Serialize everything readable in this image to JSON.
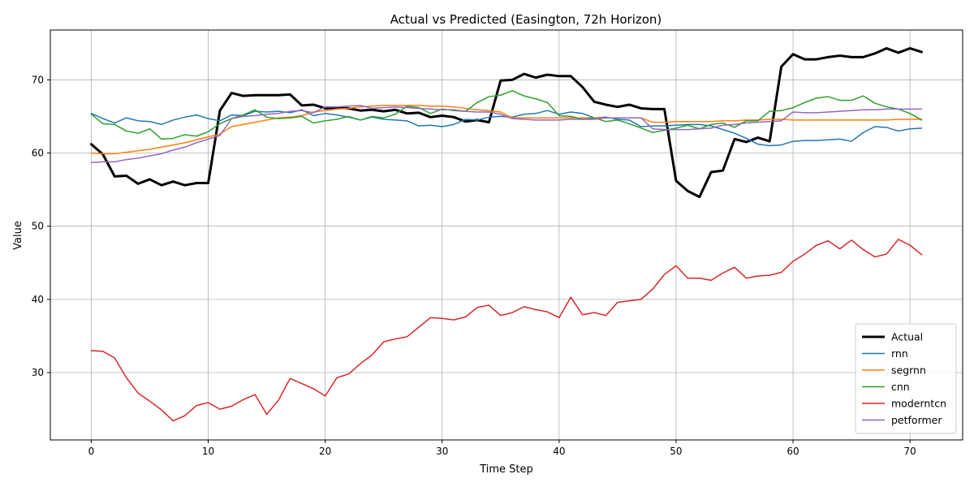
{
  "chart_data": {
    "type": "line",
    "title": "Actual vs Predicted (Easington, 72h Horizon)",
    "xlabel": "Time Step",
    "ylabel": "Value",
    "xlim": [
      -3.5,
      74.5
    ],
    "ylim": [
      20.8,
      76.8
    ],
    "xticks": [
      0,
      10,
      20,
      30,
      40,
      50,
      60,
      70
    ],
    "yticks": [
      30,
      40,
      50,
      60,
      70
    ],
    "grid": true,
    "legend_position": "lower-right",
    "x": [
      0,
      1,
      2,
      3,
      4,
      5,
      6,
      7,
      8,
      9,
      10,
      11,
      12,
      13,
      14,
      15,
      16,
      17,
      18,
      19,
      20,
      21,
      22,
      23,
      24,
      25,
      26,
      27,
      28,
      29,
      30,
      31,
      32,
      33,
      34,
      35,
      36,
      37,
      38,
      39,
      40,
      41,
      42,
      43,
      44,
      45,
      46,
      47,
      48,
      49,
      50,
      51,
      52,
      53,
      54,
      55,
      56,
      57,
      58,
      59,
      60,
      61,
      62,
      63,
      64,
      65,
      66,
      67,
      68,
      69,
      70,
      71
    ],
    "series": [
      {
        "name": "Actual",
        "color": "#000000",
        "width": 3,
        "values": [
          61.2,
          59.8,
          56.8,
          56.9,
          55.8,
          56.4,
          55.6,
          56.1,
          55.6,
          55.9,
          55.9,
          65.8,
          68.2,
          67.8,
          67.9,
          67.9,
          67.9,
          68.0,
          66.5,
          66.6,
          66.1,
          66.2,
          66.1,
          65.8,
          65.9,
          65.7,
          65.9,
          65.4,
          65.5,
          64.9,
          65.1,
          64.9,
          64.3,
          64.5,
          64.2,
          69.9,
          70.0,
          70.8,
          70.3,
          70.7,
          70.5,
          70.5,
          69.0,
          67.0,
          66.6,
          66.3,
          66.6,
          66.1,
          66.0,
          66.0,
          56.2,
          54.8,
          54.0,
          57.4,
          57.6,
          61.9,
          61.5,
          62.1,
          61.6,
          71.8,
          73.5,
          72.8,
          72.8,
          73.1,
          73.3,
          73.1,
          73.1,
          73.6,
          74.3,
          73.7,
          74.3,
          73.8
        ]
      },
      {
        "name": "rnn",
        "color": "#1f77b4",
        "width": 1.5,
        "values": [
          65.4,
          64.7,
          64.1,
          64.8,
          64.4,
          64.3,
          63.9,
          64.5,
          64.9,
          65.2,
          64.7,
          64.4,
          65.2,
          65.1,
          65.7,
          65.6,
          65.7,
          65.5,
          65.9,
          65.1,
          65.4,
          65.2,
          64.9,
          64.5,
          64.9,
          64.6,
          64.5,
          64.4,
          63.7,
          63.8,
          63.6,
          63.9,
          64.6,
          64.5,
          64.9,
          65.0,
          64.9,
          65.3,
          65.4,
          65.8,
          65.3,
          65.6,
          65.4,
          64.8,
          64.9,
          64.6,
          64.5,
          63.6,
          63.7,
          63.7,
          63.8,
          63.9,
          63.9,
          63.7,
          63.2,
          62.7,
          62.0,
          61.2,
          61.0,
          61.1,
          61.6,
          61.7,
          61.7,
          61.8,
          61.9,
          61.6,
          62.8,
          63.6,
          63.5,
          63.0,
          63.3,
          63.4
        ]
      },
      {
        "name": "segrnn",
        "color": "#ff7f0e",
        "width": 1.5,
        "values": [
          60.0,
          59.9,
          59.9,
          60.1,
          60.3,
          60.5,
          60.8,
          61.1,
          61.4,
          61.8,
          62.2,
          62.6,
          63.6,
          63.9,
          64.2,
          64.5,
          64.8,
          64.9,
          65.1,
          65.6,
          65.8,
          66.0,
          66.1,
          66.3,
          66.4,
          66.5,
          66.5,
          66.5,
          66.5,
          66.4,
          66.4,
          66.3,
          66.1,
          65.9,
          65.8,
          65.6,
          64.8,
          64.8,
          64.8,
          64.8,
          64.8,
          64.8,
          64.8,
          64.8,
          64.8,
          64.8,
          64.8,
          64.8,
          64.2,
          64.2,
          64.3,
          64.3,
          64.3,
          64.3,
          64.4,
          64.4,
          64.5,
          64.5,
          64.6,
          64.6,
          64.5,
          64.5,
          64.5,
          64.5,
          64.5,
          64.5,
          64.5,
          64.5,
          64.5,
          64.6,
          64.6,
          64.6
        ]
      },
      {
        "name": "cnn",
        "color": "#2ca02c",
        "width": 1.5,
        "values": [
          65.3,
          64.0,
          63.9,
          63.0,
          62.7,
          63.3,
          61.9,
          62.0,
          62.5,
          62.3,
          62.9,
          64.0,
          64.7,
          65.2,
          65.9,
          64.9,
          64.7,
          64.8,
          65.0,
          64.1,
          64.4,
          64.6,
          65.0,
          64.5,
          65.0,
          64.8,
          65.3,
          66.4,
          66.2,
          65.4,
          66.0,
          65.8,
          65.7,
          66.9,
          67.7,
          67.9,
          68.5,
          67.8,
          67.4,
          66.9,
          65.1,
          65.0,
          64.6,
          64.8,
          64.3,
          64.5,
          64.0,
          63.4,
          62.8,
          63.1,
          63.4,
          63.8,
          63.3,
          63.9,
          64.1,
          63.5,
          64.4,
          64.4,
          65.7,
          65.8,
          66.2,
          66.9,
          67.5,
          67.7,
          67.2,
          67.2,
          67.8,
          66.8,
          66.3,
          66.0,
          65.4,
          64.5
        ]
      },
      {
        "name": "moderntcn",
        "color": "#d62728",
        "width": 1.5,
        "values": [
          33.0,
          32.9,
          32.0,
          29.3,
          27.2,
          26.1,
          24.9,
          23.4,
          24.1,
          25.5,
          25.9,
          25.0,
          25.4,
          26.3,
          27.0,
          24.3,
          26.2,
          29.2,
          28.5,
          27.8,
          26.8,
          29.3,
          29.8,
          31.2,
          32.4,
          34.2,
          34.6,
          34.9,
          36.2,
          37.5,
          37.4,
          37.2,
          37.6,
          38.9,
          39.2,
          37.8,
          38.2,
          39.0,
          38.6,
          38.3,
          37.5,
          40.3,
          37.9,
          38.2,
          37.8,
          39.6,
          39.8,
          40.0,
          41.4,
          43.4,
          44.6,
          42.9,
          42.9,
          42.6,
          43.6,
          44.4,
          42.9,
          43.2,
          43.3,
          43.7,
          45.2,
          46.2,
          47.4,
          48.0,
          46.9,
          48.1,
          46.8,
          45.8,
          46.2,
          48.2,
          47.4,
          46.1
        ]
      },
      {
        "name": "petformer",
        "color": "#9467bd",
        "width": 1.5,
        "values": [
          58.7,
          58.8,
          58.8,
          59.1,
          59.3,
          59.6,
          59.9,
          60.4,
          60.8,
          61.4,
          61.9,
          62.4,
          64.7,
          65.0,
          65.1,
          65.3,
          65.4,
          65.7,
          65.8,
          65.5,
          66.3,
          66.3,
          66.4,
          66.5,
          66.1,
          66.2,
          66.3,
          66.2,
          66.1,
          66.0,
          65.9,
          65.9,
          65.7,
          65.6,
          65.6,
          65.3,
          64.7,
          64.6,
          64.5,
          64.5,
          64.5,
          64.6,
          64.6,
          64.6,
          64.8,
          64.8,
          64.8,
          64.8,
          63.3,
          63.2,
          63.2,
          63.2,
          63.3,
          63.4,
          63.8,
          63.9,
          64.1,
          64.2,
          64.3,
          64.4,
          65.6,
          65.5,
          65.5,
          65.6,
          65.7,
          65.8,
          65.9,
          65.9,
          66.0,
          66.0,
          66.0,
          66.0
        ]
      }
    ]
  }
}
